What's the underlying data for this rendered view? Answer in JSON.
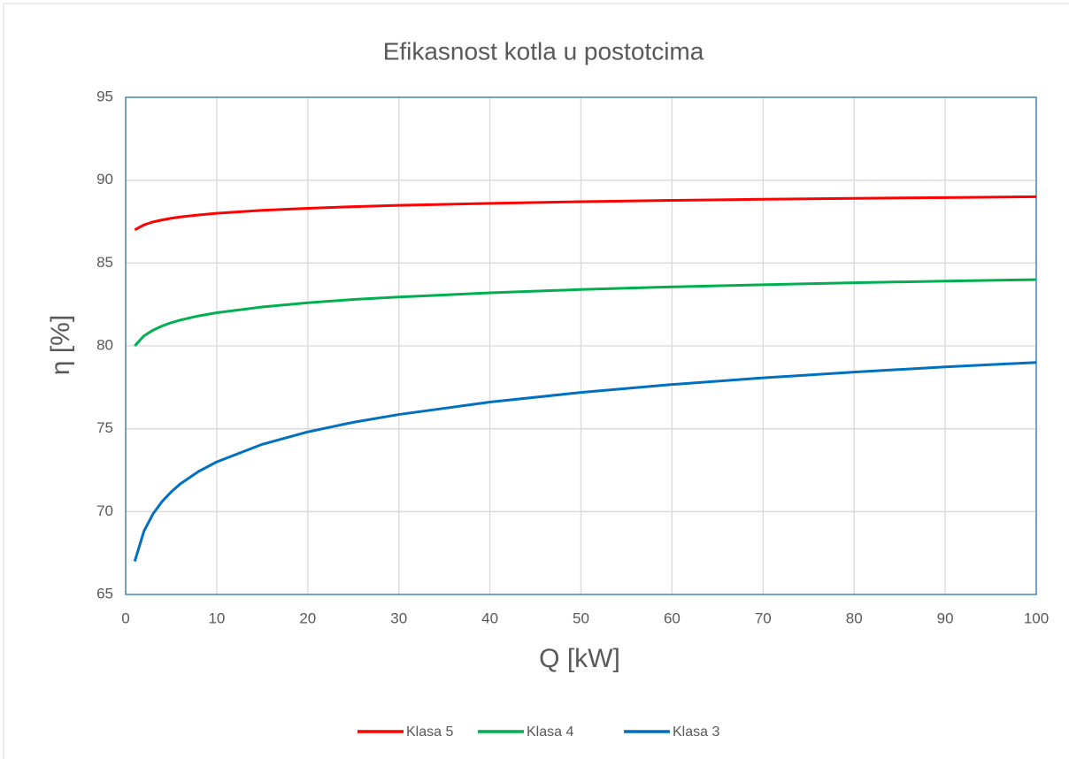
{
  "chart_data": {
    "type": "line",
    "title": "Efikasnost kotla u postotcima",
    "x_label": "Q [kW]",
    "y_label": "η [%]",
    "x": [
      1,
      2,
      3,
      4,
      5,
      6,
      8,
      10,
      15,
      20,
      25,
      30,
      40,
      50,
      60,
      70,
      80,
      90,
      100
    ],
    "series": [
      {
        "name": "Klasa 5",
        "color": "#ff0000",
        "values": [
          87,
          87.3,
          87.48,
          87.6,
          87.7,
          87.78,
          87.9,
          88,
          88.18,
          88.3,
          88.4,
          88.48,
          88.6,
          88.7,
          88.78,
          88.85,
          88.9,
          88.95,
          89
        ]
      },
      {
        "name": "Klasa 4",
        "color": "#00b050",
        "values": [
          80,
          80.6,
          80.95,
          81.2,
          81.4,
          81.56,
          81.81,
          82,
          82.35,
          82.6,
          82.8,
          82.95,
          83.2,
          83.4,
          83.56,
          83.69,
          83.81,
          83.91,
          84
        ]
      },
      {
        "name": "Klasa 3",
        "color": "#0070c0",
        "values": [
          67,
          68.81,
          69.86,
          70.61,
          71.19,
          71.67,
          72.42,
          73,
          74.06,
          74.81,
          75.39,
          75.86,
          76.61,
          77.19,
          77.67,
          78.07,
          78.42,
          78.73,
          79
        ]
      }
    ],
    "xlim": [
      0,
      100
    ],
    "xticks": [
      0,
      10,
      20,
      30,
      40,
      50,
      60,
      70,
      80,
      90,
      100
    ],
    "ylim": [
      65,
      95
    ],
    "yticks": [
      65,
      70,
      75,
      80,
      85,
      90,
      95
    ],
    "grid": true,
    "legend": "bottom",
    "frame_color": "#2e75b6"
  }
}
